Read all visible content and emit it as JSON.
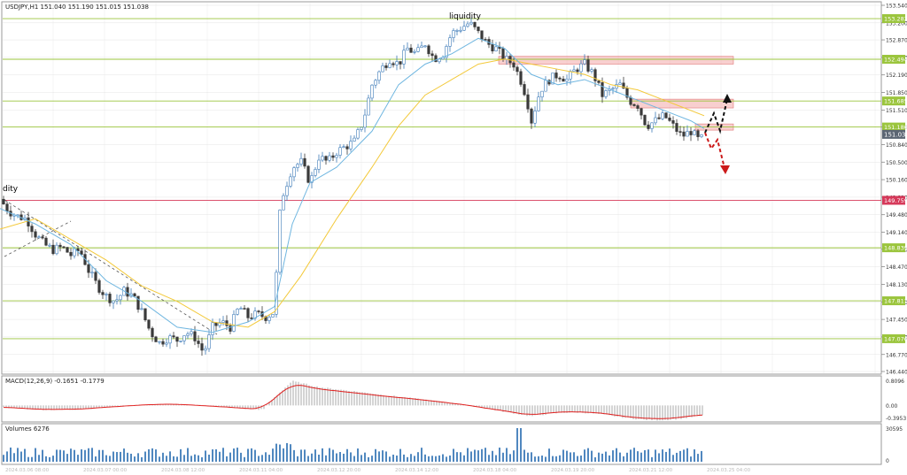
{
  "symbol_header": "USDJPY,H1  151.040 151.190 151.015 151.038",
  "annotations": {
    "liquidity_top": "liquidity",
    "liquidity_left": "dity"
  },
  "macd_label": "MACD(12,26,9) -0.1651 -0.1779",
  "volumes_label": "Volumes 6276",
  "colors": {
    "background": "#ffffff",
    "grid": "#e4e4e4",
    "bull_candle": "#3d7ab8",
    "bear_candle": "#3a3a3a",
    "level_green": "#9bc53d",
    "level_red": "#d6395a",
    "ma_fast": "#6fb6e0",
    "ma_slow": "#f3c93a",
    "zone": "#f3a7a7",
    "macd_hist": "#a9a9a9",
    "macd_signal": "#e0201f",
    "volume": "#3d7ab8",
    "arrow_up": "#111111",
    "arrow_down": "#cc1a1a"
  },
  "chart_data": {
    "type": "candlestick",
    "price_axis": {
      "min": 146.44,
      "max": 153.54,
      "ticks": [
        "153.540",
        "153.200",
        "152.870",
        "152.530",
        "152.190",
        "151.850",
        "151.510",
        "151.180",
        "150.840",
        "150.500",
        "150.160",
        "149.820",
        "149.480",
        "149.140",
        "148.810",
        "148.470",
        "148.130",
        "147.790",
        "147.450",
        "147.110",
        "146.770",
        "146.440"
      ]
    },
    "levels": [
      {
        "label": "153.282",
        "value": 153.282,
        "color": "green"
      },
      {
        "label": "152.494",
        "value": 152.494,
        "color": "green"
      },
      {
        "label": "151.685",
        "value": 151.685,
        "color": "green"
      },
      {
        "label": "151.180",
        "value": 151.18,
        "color": "green"
      },
      {
        "label": "149.759",
        "value": 149.759,
        "color": "red"
      },
      {
        "label": "148.839",
        "value": 148.839,
        "color": "green"
      },
      {
        "label": "147.811",
        "value": 147.811,
        "color": "green"
      },
      {
        "label": "147.076",
        "value": 147.076,
        "color": "green"
      }
    ],
    "current_price": {
      "label": "151.038",
      "value": 151.038
    },
    "close_path": [
      [
        0,
        149.78
      ],
      [
        10,
        149.55
      ],
      [
        20,
        149.45
      ],
      [
        30,
        149.4
      ],
      [
        40,
        149.1
      ],
      [
        50,
        148.9
      ],
      [
        60,
        148.8
      ],
      [
        70,
        148.85
      ],
      [
        80,
        148.7
      ],
      [
        90,
        148.8
      ],
      [
        100,
        148.4
      ],
      [
        110,
        148.1
      ],
      [
        120,
        147.9
      ],
      [
        130,
        147.8
      ],
      [
        140,
        148.0
      ],
      [
        150,
        147.9
      ],
      [
        160,
        147.6
      ],
      [
        170,
        147.2
      ],
      [
        180,
        147.0
      ],
      [
        190,
        147.1
      ],
      [
        200,
        147.05
      ],
      [
        210,
        147.2
      ],
      [
        220,
        147.1
      ],
      [
        230,
        146.8
      ],
      [
        240,
        147.3
      ],
      [
        250,
        147.4
      ],
      [
        260,
        147.3
      ],
      [
        270,
        147.7
      ],
      [
        280,
        147.5
      ],
      [
        290,
        147.55
      ],
      [
        300,
        147.5
      ],
      [
        310,
        147.6
      ],
      [
        315,
        149.4
      ],
      [
        320,
        149.9
      ],
      [
        330,
        150.4
      ],
      [
        340,
        150.5
      ],
      [
        350,
        150.1
      ],
      [
        360,
        150.6
      ],
      [
        370,
        150.5
      ],
      [
        380,
        150.7
      ],
      [
        390,
        150.8
      ],
      [
        400,
        150.9
      ],
      [
        410,
        151.3
      ],
      [
        420,
        152.0
      ],
      [
        430,
        152.3
      ],
      [
        440,
        152.5
      ],
      [
        450,
        152.4
      ],
      [
        460,
        152.7
      ],
      [
        470,
        152.6
      ],
      [
        480,
        152.8
      ],
      [
        490,
        152.5
      ],
      [
        500,
        152.6
      ],
      [
        510,
        153.0
      ],
      [
        520,
        153.1
      ],
      [
        530,
        153.2
      ],
      [
        540,
        153.0
      ],
      [
        550,
        152.8
      ],
      [
        560,
        152.7
      ],
      [
        570,
        152.5
      ],
      [
        580,
        152.4
      ],
      [
        590,
        152.0
      ],
      [
        595,
        151.7
      ],
      [
        600,
        151.3
      ],
      [
        610,
        151.9
      ],
      [
        620,
        152.1
      ],
      [
        630,
        152.2
      ],
      [
        640,
        152.1
      ],
      [
        650,
        152.3
      ],
      [
        660,
        152.4
      ],
      [
        670,
        152.2
      ],
      [
        680,
        151.8
      ],
      [
        690,
        151.9
      ],
      [
        700,
        152.0
      ],
      [
        710,
        151.7
      ],
      [
        720,
        151.6
      ],
      [
        730,
        151.2
      ],
      [
        740,
        151.3
      ],
      [
        750,
        151.4
      ],
      [
        760,
        151.2
      ],
      [
        770,
        151.0
      ],
      [
        780,
        151.1
      ],
      [
        790,
        150.9
      ],
      [
        795,
        151.04
      ]
    ],
    "ma_fast_path": [
      [
        0,
        149.6
      ],
      [
        40,
        149.3
      ],
      [
        80,
        148.9
      ],
      [
        120,
        148.2
      ],
      [
        160,
        147.8
      ],
      [
        200,
        147.3
      ],
      [
        240,
        147.2
      ],
      [
        280,
        147.4
      ],
      [
        310,
        147.7
      ],
      [
        330,
        149.3
      ],
      [
        350,
        150.1
      ],
      [
        380,
        150.4
      ],
      [
        420,
        151.1
      ],
      [
        450,
        152.0
      ],
      [
        480,
        152.4
      ],
      [
        510,
        152.6
      ],
      [
        540,
        152.9
      ],
      [
        570,
        152.7
      ],
      [
        600,
        152.2
      ],
      [
        630,
        152.0
      ],
      [
        660,
        152.1
      ],
      [
        690,
        151.9
      ],
      [
        720,
        151.7
      ],
      [
        750,
        151.5
      ],
      [
        780,
        151.3
      ],
      [
        795,
        151.15
      ]
    ],
    "ma_slow_path": [
      [
        0,
        149.2
      ],
      [
        40,
        149.4
      ],
      [
        80,
        149.0
      ],
      [
        120,
        148.6
      ],
      [
        160,
        148.1
      ],
      [
        200,
        147.8
      ],
      [
        240,
        147.4
      ],
      [
        280,
        147.3
      ],
      [
        310,
        147.6
      ],
      [
        340,
        148.3
      ],
      [
        380,
        149.4
      ],
      [
        420,
        150.4
      ],
      [
        450,
        151.2
      ],
      [
        480,
        151.8
      ],
      [
        510,
        152.1
      ],
      [
        540,
        152.4
      ],
      [
        570,
        152.5
      ],
      [
        600,
        152.4
      ],
      [
        630,
        152.3
      ],
      [
        660,
        152.2
      ],
      [
        690,
        152.0
      ],
      [
        720,
        151.9
      ],
      [
        750,
        151.7
      ],
      [
        780,
        151.5
      ],
      [
        795,
        151.4
      ]
    ],
    "zones": [
      {
        "x1": 563,
        "x2": 828,
        "y1": 152.4,
        "y2": 152.55
      },
      {
        "x1": 712,
        "x2": 828,
        "y1": 151.55,
        "y2": 151.72
      },
      {
        "x1": 785,
        "x2": 828,
        "y1": 151.12,
        "y2": 151.24
      }
    ],
    "macd": {
      "axis_labels": [
        "0.8096",
        "0.00",
        "-0.3953"
      ],
      "min": -0.45,
      "max": 0.85
    },
    "volume": {
      "axis_labels": [
        "30595",
        "0"
      ],
      "max": 30595
    },
    "time_axis": [
      "2024.03.06 08:00",
      "2024.03.07 00:00",
      "2024.03.08 12:00",
      "2024.03.11 04:00",
      "2024.03.12 20:00",
      "2024.03.14 12:00",
      "2024.03.18 04:00",
      "2024.03.19 20:00",
      "2024.03.21 12:00",
      "2024.03.25 04:00"
    ]
  }
}
